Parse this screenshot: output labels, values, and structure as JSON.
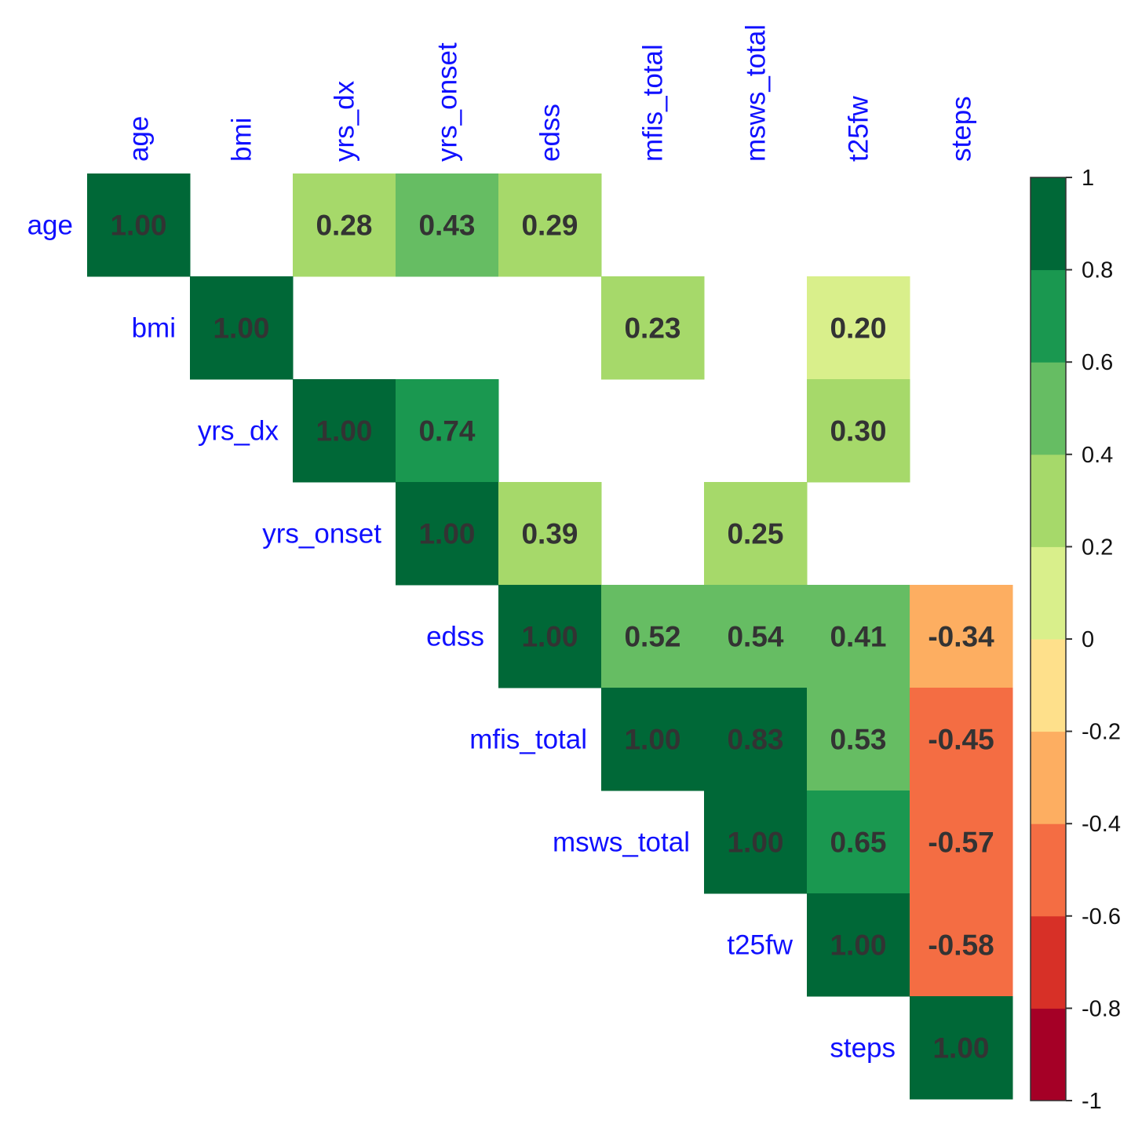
{
  "chart_data": {
    "type": "heatmap",
    "variables": [
      "age",
      "bmi",
      "yrs_dx",
      "yrs_onset",
      "edss",
      "mfis_total",
      "msws_total",
      "t25fw",
      "steps"
    ],
    "cells": [
      {
        "row": "age",
        "col": "age",
        "value": 1.0,
        "label": "1.00"
      },
      {
        "row": "age",
        "col": "yrs_dx",
        "value": 0.28,
        "label": "0.28"
      },
      {
        "row": "age",
        "col": "yrs_onset",
        "value": 0.43,
        "label": "0.43"
      },
      {
        "row": "age",
        "col": "edss",
        "value": 0.29,
        "label": "0.29"
      },
      {
        "row": "bmi",
        "col": "bmi",
        "value": 1.0,
        "label": "1.00"
      },
      {
        "row": "bmi",
        "col": "mfis_total",
        "value": 0.23,
        "label": "0.23"
      },
      {
        "row": "bmi",
        "col": "t25fw",
        "value": 0.2,
        "label": "0.20"
      },
      {
        "row": "yrs_dx",
        "col": "yrs_dx",
        "value": 1.0,
        "label": "1.00"
      },
      {
        "row": "yrs_dx",
        "col": "yrs_onset",
        "value": 0.74,
        "label": "0.74"
      },
      {
        "row": "yrs_dx",
        "col": "t25fw",
        "value": 0.3,
        "label": "0.30"
      },
      {
        "row": "yrs_onset",
        "col": "yrs_onset",
        "value": 1.0,
        "label": "1.00"
      },
      {
        "row": "yrs_onset",
        "col": "edss",
        "value": 0.39,
        "label": "0.39"
      },
      {
        "row": "yrs_onset",
        "col": "msws_total",
        "value": 0.25,
        "label": "0.25"
      },
      {
        "row": "edss",
        "col": "edss",
        "value": 1.0,
        "label": "1.00"
      },
      {
        "row": "edss",
        "col": "mfis_total",
        "value": 0.52,
        "label": "0.52"
      },
      {
        "row": "edss",
        "col": "msws_total",
        "value": 0.54,
        "label": "0.54"
      },
      {
        "row": "edss",
        "col": "t25fw",
        "value": 0.41,
        "label": "0.41"
      },
      {
        "row": "edss",
        "col": "steps",
        "value": -0.34,
        "label": "-0.34"
      },
      {
        "row": "mfis_total",
        "col": "mfis_total",
        "value": 1.0,
        "label": "1.00"
      },
      {
        "row": "mfis_total",
        "col": "msws_total",
        "value": 0.83,
        "label": "0.83"
      },
      {
        "row": "mfis_total",
        "col": "t25fw",
        "value": 0.53,
        "label": "0.53"
      },
      {
        "row": "mfis_total",
        "col": "steps",
        "value": -0.45,
        "label": "-0.45"
      },
      {
        "row": "msws_total",
        "col": "msws_total",
        "value": 1.0,
        "label": "1.00"
      },
      {
        "row": "msws_total",
        "col": "t25fw",
        "value": 0.65,
        "label": "0.65"
      },
      {
        "row": "msws_total",
        "col": "steps",
        "value": -0.57,
        "label": "-0.57"
      },
      {
        "row": "t25fw",
        "col": "t25fw",
        "value": 1.0,
        "label": "1.00"
      },
      {
        "row": "t25fw",
        "col": "steps",
        "value": -0.58,
        "label": "-0.58"
      },
      {
        "row": "steps",
        "col": "steps",
        "value": 1.0,
        "label": "1.00"
      }
    ],
    "colorbar": {
      "range": [
        -1,
        1
      ],
      "ticks": [
        "1",
        "0.8",
        "0.6",
        "0.4",
        "0.2",
        "0",
        "-0.2",
        "-0.4",
        "-0.6",
        "-0.8",
        "-1"
      ],
      "colors": [
        "#a50026",
        "#d73027",
        "#f46d43",
        "#fdae61",
        "#fee08b",
        "#d9ef8b",
        "#a6d96a",
        "#66bd63",
        "#1a9850",
        "#006837"
      ]
    },
    "label_color": "#1010ff",
    "value_text_color": "#333333",
    "title": "",
    "xlabel": "",
    "ylabel": ""
  }
}
